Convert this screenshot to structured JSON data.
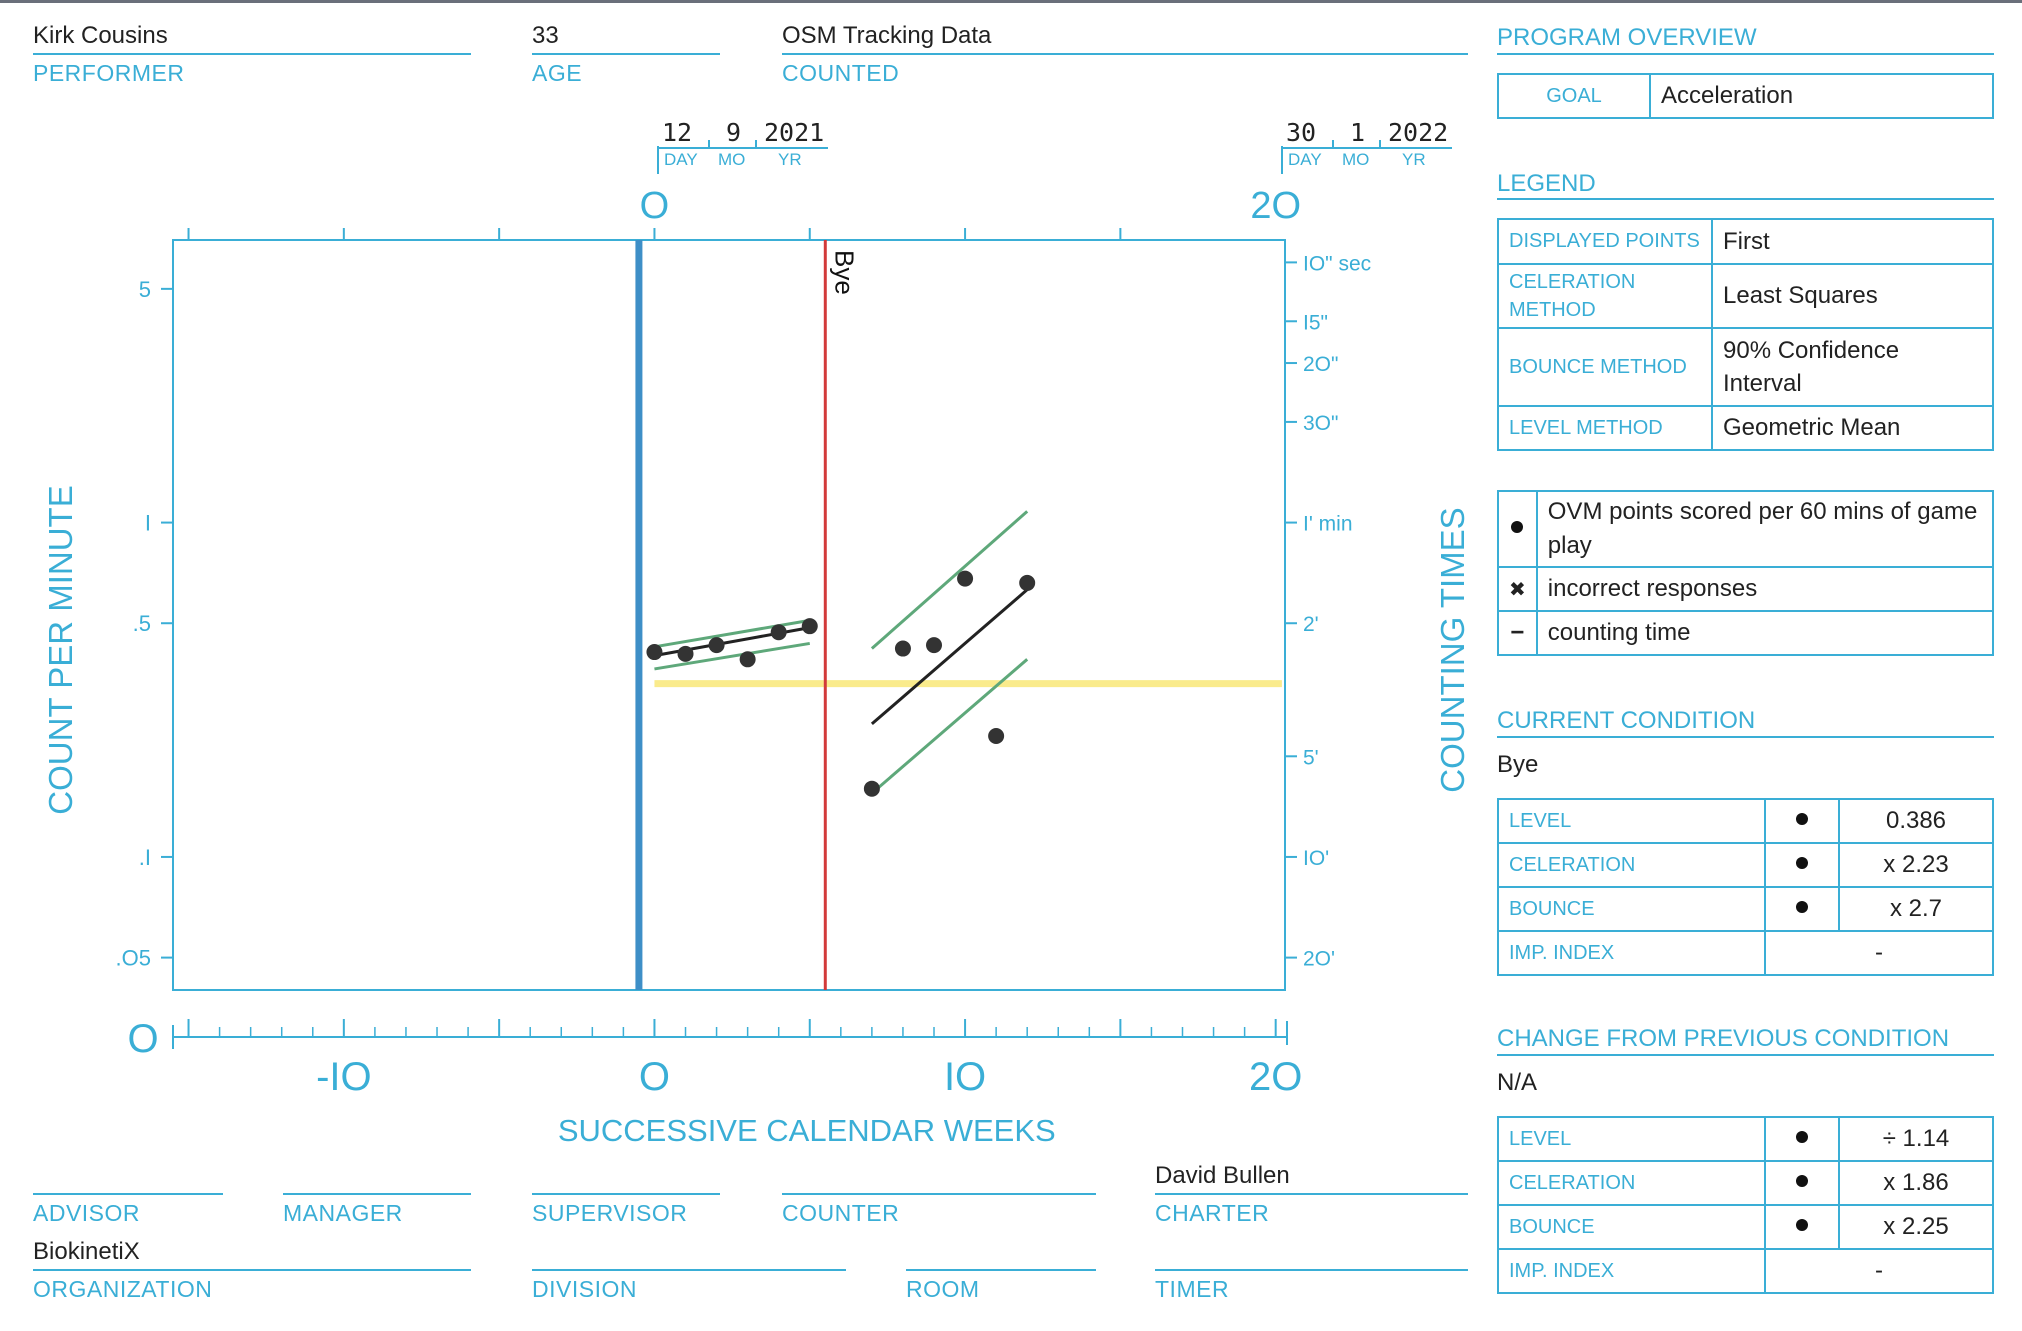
{
  "header": {
    "performer_value": "Kirk Cousins",
    "performer_label": "PERFORMER",
    "age_value": "33",
    "age_label": "AGE",
    "counted_value": "OSM Tracking Data",
    "counted_label": "COUNTED"
  },
  "dates": {
    "start": {
      "day": "12",
      "mo": "9",
      "yr": "2021"
    },
    "end": {
      "day": "30",
      "mo": "1",
      "yr": "2022"
    },
    "day_label": "DAY",
    "mo_label": "MO",
    "yr_label": "YR"
  },
  "footer": {
    "advisor_label": "ADVISOR",
    "manager_label": "MANAGER",
    "supervisor_label": "SUPERVISOR",
    "counter_label": "COUNTER",
    "charter_value": "David Bullen",
    "charter_label": "CHARTER",
    "organization_value": "BiokinetiX",
    "organization_label": "ORGANIZATION",
    "division_label": "DIVISION",
    "room_label": "ROOM",
    "timer_label": "TIMER"
  },
  "program": {
    "title": "PROGRAM OVERVIEW",
    "goal_label": "GOAL",
    "goal_value": "Acceleration"
  },
  "legend": {
    "title": "LEGEND",
    "rows": [
      {
        "label": "DISPLAYED POINTS",
        "value": "First"
      },
      {
        "label": "CELERATION METHOD",
        "value": "Least Squares"
      },
      {
        "label": "BOUNCE METHOD",
        "value": "90% Confidence Interval"
      },
      {
        "label": "LEVEL METHOD",
        "value": "Geometric Mean"
      }
    ],
    "symbols": [
      {
        "symbol": "dot",
        "text": "OVM points scored per 60 mins of game play"
      },
      {
        "symbol": "✖",
        "text": "incorrect responses"
      },
      {
        "symbol": "−",
        "text": "counting time"
      }
    ]
  },
  "current": {
    "title": "CURRENT CONDITION",
    "name": "Bye",
    "rows": [
      {
        "label": "LEVEL",
        "dot": true,
        "value": "0.386"
      },
      {
        "label": "CELERATION",
        "dot": true,
        "value": "x 2.23"
      },
      {
        "label": "BOUNCE",
        "dot": true,
        "value": "x 2.7"
      },
      {
        "label": "IMP. INDEX",
        "dot": false,
        "value": "-"
      }
    ]
  },
  "change": {
    "title": "CHANGE FROM PREVIOUS CONDITION",
    "name": "N/A",
    "rows": [
      {
        "label": "LEVEL",
        "dot": true,
        "value": "÷ 1.14"
      },
      {
        "label": "CELERATION",
        "dot": true,
        "value": "x 1.86"
      },
      {
        "label": "BOUNCE",
        "dot": true,
        "value": "x 2.25"
      },
      {
        "label": "IMP. INDEX",
        "dot": false,
        "value": "-"
      }
    ]
  },
  "chart_data": {
    "type": "scatter",
    "xlabel": "SUCCESSIVE CALENDAR WEEKS",
    "ylabel": "COUNT PER MINUTE",
    "y2label": "COUNTING TIMES",
    "x_range": [
      -15.5,
      20.3
    ],
    "y_range": [
      0.04,
      7.0
    ],
    "y_scale": "log",
    "x_ticks": [
      {
        "value": -10,
        "label": "-IO"
      },
      {
        "value": 0,
        "label": "O"
      },
      {
        "value": 10,
        "label": "IO"
      },
      {
        "value": 20,
        "label": "2O"
      }
    ],
    "top_ticks": [
      {
        "value": 0,
        "label": "O"
      },
      {
        "value": 20,
        "label": "2O"
      }
    ],
    "y_ticks": [
      {
        "value": 5,
        "label": "5"
      },
      {
        "value": 1,
        "label": "I"
      },
      {
        "value": 0.5,
        "label": ".5"
      },
      {
        "value": 0.1,
        "label": ".I"
      },
      {
        "value": 0.05,
        "label": ".O5"
      }
    ],
    "y_zero_label": "O",
    "counting_times": [
      {
        "value": 6,
        "label": "IO\" sec"
      },
      {
        "value": 4,
        "label": "I5\""
      },
      {
        "value": 3,
        "label": "2O\""
      },
      {
        "value": 2,
        "label": "3O\""
      },
      {
        "value": 1,
        "label": "I' min"
      },
      {
        "value": 0.5,
        "label": "2'"
      },
      {
        "value": 0.2,
        "label": "5'"
      },
      {
        "value": 0.1,
        "label": "IO'"
      },
      {
        "value": 0.05,
        "label": "2O'"
      }
    ],
    "phase_line": {
      "x": -0.5
    },
    "condition_line": {
      "x": 5.5,
      "label": "Bye"
    },
    "series": [
      {
        "values": [
          {
            "x": 0,
            "y": 0.41
          },
          {
            "x": 1,
            "y": 0.405
          },
          {
            "x": 2,
            "y": 0.43
          },
          {
            "x": 3,
            "y": 0.39
          },
          {
            "x": 4,
            "y": 0.47
          },
          {
            "x": 5,
            "y": 0.49
          },
          {
            "x": 7,
            "y": 0.16
          },
          {
            "x": 8,
            "y": 0.42
          },
          {
            "x": 9,
            "y": 0.43
          },
          {
            "x": 10,
            "y": 0.68
          },
          {
            "x": 11,
            "y": 0.23
          },
          {
            "x": 12,
            "y": 0.66
          }
        ]
      }
    ],
    "celeration_lines": [
      {
        "from": [
          0,
          0.4
        ],
        "to": [
          5,
          0.485
        ]
      },
      {
        "from": [
          7,
          0.25
        ],
        "to": [
          12,
          0.63
        ]
      }
    ],
    "bounce_lines": [
      {
        "from": [
          0,
          0.425
        ],
        "to": [
          5,
          0.51
        ]
      },
      {
        "from": [
          0,
          0.365
        ],
        "to": [
          5,
          0.435
        ]
      },
      {
        "from": [
          7,
          0.42
        ],
        "to": [
          12,
          1.08
        ]
      },
      {
        "from": [
          7,
          0.155
        ],
        "to": [
          12,
          0.39
        ]
      }
    ],
    "level_line": {
      "from": 0,
      "to": 20.2,
      "y": 0.33
    }
  }
}
